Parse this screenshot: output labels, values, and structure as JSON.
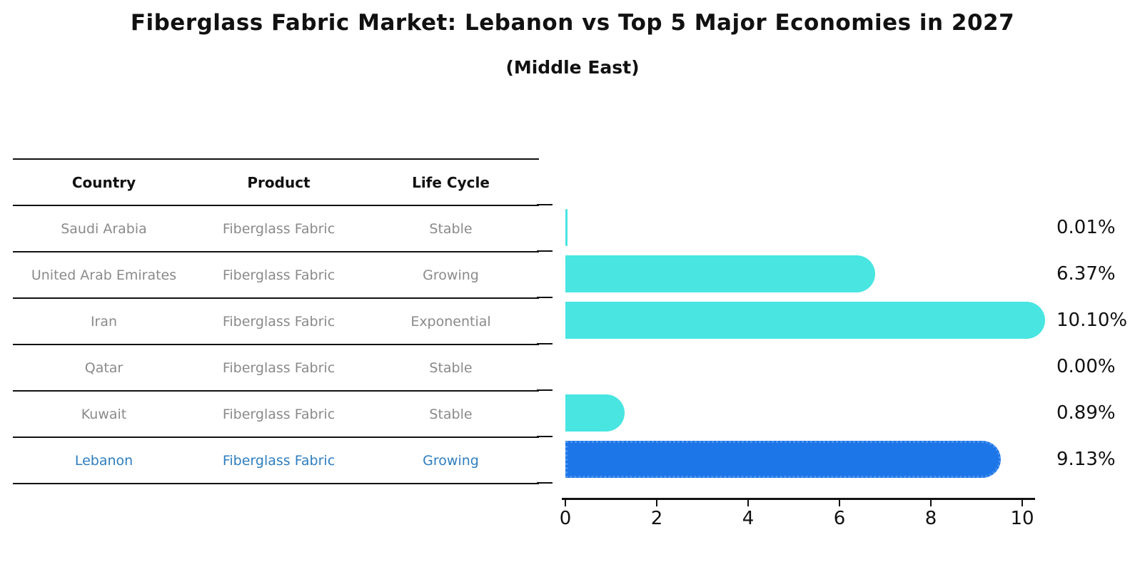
{
  "title": "Fiberglass Fabric Market: Lebanon vs Top 5 Major Economies in 2027",
  "subtitle": "(Middle East)",
  "table": {
    "headers": [
      "Country",
      "Product",
      "Life Cycle"
    ],
    "rows": [
      {
        "country": "Saudi Arabia",
        "product": "Fiberglass Fabric",
        "life_cycle": "Stable",
        "highlight": false
      },
      {
        "country": "United Arab Emirates",
        "product": "Fiberglass Fabric",
        "life_cycle": "Growing",
        "highlight": false
      },
      {
        "country": "Iran",
        "product": "Fiberglass Fabric",
        "life_cycle": "Exponential",
        "highlight": false
      },
      {
        "country": "Qatar",
        "product": "Fiberglass Fabric",
        "life_cycle": "Stable",
        "highlight": false
      },
      {
        "country": "Kuwait",
        "product": "Fiberglass Fabric",
        "life_cycle": "Stable",
        "highlight": false
      },
      {
        "country": "Lebanon",
        "product": "Fiberglass Fabric",
        "life_cycle": "Growing",
        "highlight": true
      }
    ]
  },
  "chart_data": {
    "type": "bar",
    "orientation": "horizontal",
    "title": "Fiberglass Fabric Market: Lebanon vs Top 5 Major Economies in 2027 (Middle East)",
    "categories": [
      "Saudi Arabia",
      "United Arab Emirates",
      "Iran",
      "Qatar",
      "Kuwait",
      "Lebanon"
    ],
    "values": [
      0.01,
      6.37,
      10.1,
      0.0,
      0.89,
      9.13
    ],
    "value_labels": [
      "0.01%",
      "6.37%",
      "10.10%",
      "0.00%",
      "0.89%",
      "9.13%"
    ],
    "x_ticks": [
      0,
      2,
      4,
      6,
      8,
      10
    ],
    "xlim": [
      0,
      10.4
    ],
    "grid": false,
    "legend": false,
    "highlight_index": 5,
    "bar_color": "#48e5e1",
    "highlight_color": "#1d76e8",
    "highlight_text_color": "#2e7ebf"
  }
}
